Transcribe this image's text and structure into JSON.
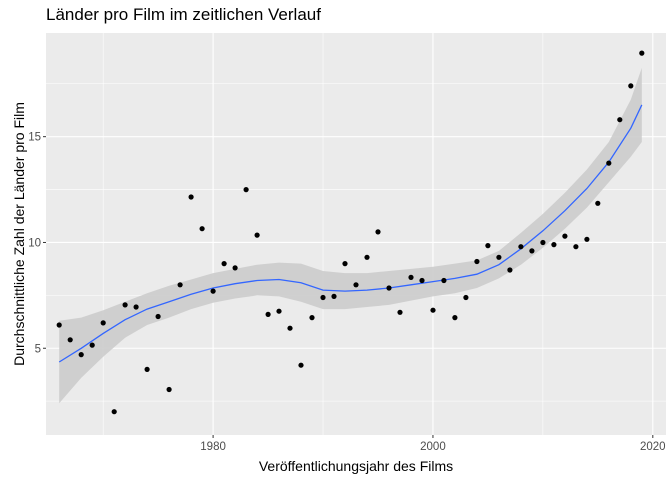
{
  "chart_data": {
    "type": "scatter",
    "title": "Länder pro Film im zeitlichen Verlauf",
    "xlabel": "Veröffentlichungsjahr des Films",
    "ylabel": "Durchschnittliche Zahl der Länder pro Film",
    "xlim": [
      1964.8,
      2021.2
    ],
    "ylim": [
      0.9,
      19.9
    ],
    "x_ticks": [
      1980,
      2000,
      2020
    ],
    "y_ticks": [
      5,
      10,
      15
    ],
    "x_tick_labels": [
      "1980",
      "2000",
      "2020"
    ],
    "y_tick_labels": [
      "5",
      "10",
      "15"
    ],
    "grid": true,
    "points": [
      [
        1966,
        6.1
      ],
      [
        1967,
        5.4
      ],
      [
        1968,
        4.7
      ],
      [
        1969,
        5.15
      ],
      [
        1970,
        6.2
      ],
      [
        1971,
        2.0
      ],
      [
        1972,
        7.05
      ],
      [
        1973,
        6.95
      ],
      [
        1974,
        4.0
      ],
      [
        1975,
        6.5
      ],
      [
        1976,
        3.05
      ],
      [
        1977,
        8.0
      ],
      [
        1978,
        12.15
      ],
      [
        1979,
        10.65
      ],
      [
        1980,
        7.7
      ],
      [
        1981,
        9.0
      ],
      [
        1982,
        8.8
      ],
      [
        1983,
        12.5
      ],
      [
        1984,
        10.35
      ],
      [
        1985,
        6.6
      ],
      [
        1986,
        6.75
      ],
      [
        1987,
        5.95
      ],
      [
        1988,
        4.2
      ],
      [
        1989,
        6.45
      ],
      [
        1990,
        7.4
      ],
      [
        1991,
        7.45
      ],
      [
        1992,
        9.0
      ],
      [
        1993,
        8.0
      ],
      [
        1994,
        9.3
      ],
      [
        1995,
        10.5
      ],
      [
        1996,
        7.85
      ],
      [
        1997,
        6.7
      ],
      [
        1998,
        8.35
      ],
      [
        1999,
        8.2
      ],
      [
        2000,
        6.8
      ],
      [
        2001,
        8.2
      ],
      [
        2002,
        6.45
      ],
      [
        2003,
        7.4
      ],
      [
        2004,
        9.1
      ],
      [
        2005,
        9.85
      ],
      [
        2006,
        9.3
      ],
      [
        2007,
        8.7
      ],
      [
        2008,
        9.8
      ],
      [
        2009,
        9.6
      ],
      [
        2010,
        10.0
      ],
      [
        2011,
        9.9
      ],
      [
        2012,
        10.3
      ],
      [
        2013,
        9.8
      ],
      [
        2014,
        10.15
      ],
      [
        2015,
        11.85
      ],
      [
        2016,
        13.75
      ],
      [
        2017,
        15.8
      ],
      [
        2018,
        17.4
      ],
      [
        2019,
        18.95
      ]
    ],
    "smooth": {
      "x": [
        1966,
        1968,
        1970,
        1972,
        1974,
        1976,
        1978,
        1980,
        1982,
        1984,
        1986,
        1988,
        1990,
        1992,
        1994,
        1996,
        1998,
        2000,
        2002,
        2004,
        2006,
        2008,
        2010,
        2012,
        2014,
        2016,
        2018,
        2019
      ],
      "y": [
        4.35,
        5.0,
        5.7,
        6.35,
        6.85,
        7.2,
        7.55,
        7.85,
        8.05,
        8.2,
        8.25,
        8.1,
        7.75,
        7.7,
        7.75,
        7.85,
        8.0,
        8.15,
        8.3,
        8.5,
        8.95,
        9.7,
        10.55,
        11.5,
        12.55,
        13.8,
        15.4,
        16.5
      ],
      "lower": [
        2.4,
        3.6,
        4.6,
        5.5,
        6.1,
        6.45,
        6.85,
        7.15,
        7.35,
        7.5,
        7.45,
        7.2,
        6.85,
        6.85,
        6.95,
        7.05,
        7.25,
        7.45,
        7.6,
        7.85,
        8.3,
        8.95,
        9.75,
        10.65,
        11.65,
        12.85,
        14.05,
        14.75
      ],
      "upper": [
        6.3,
        6.45,
        6.8,
        7.2,
        7.6,
        7.95,
        8.25,
        8.55,
        8.75,
        8.95,
        9.05,
        9.0,
        8.65,
        8.55,
        8.55,
        8.65,
        8.75,
        8.85,
        9.0,
        9.15,
        9.6,
        10.45,
        11.35,
        12.35,
        13.45,
        14.75,
        16.75,
        18.25
      ]
    },
    "colors": {
      "panel": "#ebebeb",
      "grid_major": "#ffffff",
      "ribbon": "#cccccc",
      "line": "#3366ff",
      "point": "#000000",
      "tick_text": "#4d4d4d",
      "tick_mark": "#333333"
    }
  }
}
